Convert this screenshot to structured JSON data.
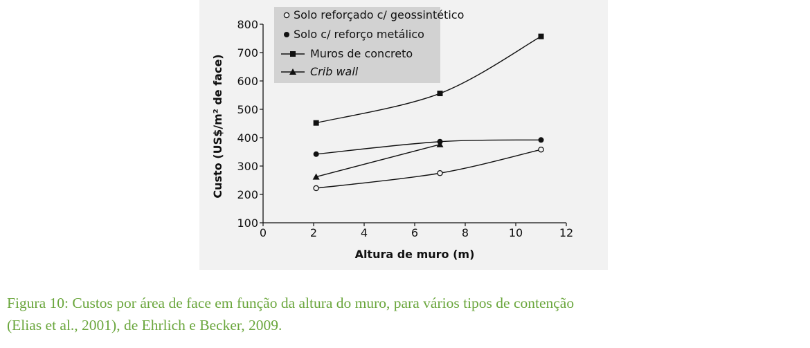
{
  "chart_data": {
    "type": "line",
    "xlabel": "Altura de muro (m)",
    "ylabel": "Custo (US$/m² de face)",
    "xlim": [
      0,
      12
    ],
    "ylim": [
      100,
      800
    ],
    "xticks": [
      0,
      2,
      4,
      6,
      8,
      10,
      12
    ],
    "yticks": [
      100,
      200,
      300,
      400,
      500,
      600,
      700,
      800
    ],
    "grid": false,
    "legend_position": "top",
    "series": [
      {
        "name": "Solo reforçado c/ geossintético",
        "marker": "open-circle",
        "legend_symbol": "○",
        "x": [
          2.1,
          7.0,
          11.0
        ],
        "y": [
          222,
          275,
          358
        ]
      },
      {
        "name": "Solo c/ reforço metálico",
        "marker": "filled-circle",
        "legend_symbol": "●",
        "x": [
          2.1,
          7.0,
          11.0
        ],
        "y": [
          342,
          386,
          392
        ]
      },
      {
        "name": "Muros de concreto",
        "marker": "filled-square",
        "legend_symbol": "■",
        "x": [
          2.1,
          7.0,
          11.0
        ],
        "y": [
          452,
          556,
          757
        ]
      },
      {
        "name": "Crib wall",
        "marker": "filled-triangle",
        "legend_symbol": "▲",
        "italic": true,
        "x": [
          2.1,
          7.0
        ],
        "y": [
          262,
          376
        ]
      }
    ]
  },
  "caption": {
    "line1": "Figura 10: Custos por área de face em função da altura do muro, para vários tipos de contenção",
    "line2": "(Elias et   al., 2001), de Ehrlich e Becker, 2009."
  }
}
